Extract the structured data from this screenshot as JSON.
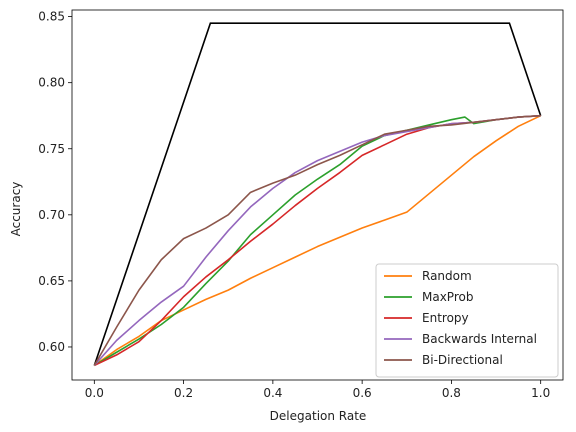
{
  "chart_data": {
    "type": "line",
    "title": "",
    "xlabel": "Delegation Rate",
    "ylabel": "Accuracy",
    "xlim": [
      -0.05,
      1.05
    ],
    "ylim": [
      0.575,
      0.855
    ],
    "xticks": [
      "0.0",
      "0.2",
      "0.4",
      "0.6",
      "0.8",
      "1.0"
    ],
    "xtick_values": [
      0.0,
      0.2,
      0.4,
      0.6,
      0.8,
      1.0
    ],
    "yticks": [
      "0.60",
      "0.65",
      "0.70",
      "0.75",
      "0.80",
      "0.85"
    ],
    "ytick_values": [
      0.6,
      0.65,
      0.7,
      0.75,
      0.8,
      0.85
    ],
    "grid": false,
    "legend_position": "lower-right",
    "oracle": {
      "color": "#000000",
      "x": [
        0.0,
        0.26,
        0.93,
        1.0
      ],
      "y": [
        0.586,
        0.845,
        0.845,
        0.775
      ]
    },
    "series": [
      {
        "name": "Random",
        "color": "#ff7f0e",
        "x": [
          0.0,
          0.05,
          0.1,
          0.15,
          0.2,
          0.25,
          0.3,
          0.35,
          0.4,
          0.45,
          0.5,
          0.55,
          0.6,
          0.65,
          0.7,
          0.75,
          0.8,
          0.85,
          0.9,
          0.95,
          1.0
        ],
        "y": [
          0.586,
          0.598,
          0.608,
          0.62,
          0.628,
          0.636,
          0.643,
          0.652,
          0.66,
          0.668,
          0.676,
          0.683,
          0.69,
          0.696,
          0.702,
          0.716,
          0.73,
          0.744,
          0.756,
          0.767,
          0.775
        ]
      },
      {
        "name": "MaxProb",
        "color": "#2ca02c",
        "x": [
          0.0,
          0.05,
          0.1,
          0.15,
          0.2,
          0.25,
          0.3,
          0.35,
          0.4,
          0.45,
          0.5,
          0.55,
          0.6,
          0.65,
          0.7,
          0.75,
          0.8,
          0.83,
          0.85,
          0.9,
          0.95,
          1.0
        ],
        "y": [
          0.586,
          0.596,
          0.606,
          0.617,
          0.63,
          0.648,
          0.665,
          0.685,
          0.7,
          0.715,
          0.727,
          0.738,
          0.752,
          0.76,
          0.764,
          0.768,
          0.772,
          0.774,
          0.769,
          0.772,
          0.774,
          0.775
        ]
      },
      {
        "name": "Entropy",
        "color": "#d62728",
        "x": [
          0.0,
          0.05,
          0.1,
          0.15,
          0.2,
          0.25,
          0.3,
          0.35,
          0.4,
          0.45,
          0.5,
          0.55,
          0.6,
          0.65,
          0.7,
          0.75,
          0.8,
          0.85,
          0.9,
          0.95,
          1.0
        ],
        "y": [
          0.586,
          0.594,
          0.604,
          0.62,
          0.638,
          0.653,
          0.666,
          0.68,
          0.693,
          0.707,
          0.72,
          0.732,
          0.745,
          0.753,
          0.761,
          0.766,
          0.769,
          0.77,
          0.772,
          0.774,
          0.775
        ]
      },
      {
        "name": "Backwards Internal",
        "color": "#9467bd",
        "x": [
          0.0,
          0.05,
          0.1,
          0.15,
          0.2,
          0.25,
          0.3,
          0.35,
          0.4,
          0.45,
          0.5,
          0.55,
          0.6,
          0.65,
          0.7,
          0.75,
          0.8,
          0.85,
          0.9,
          0.95,
          1.0
        ],
        "y": [
          0.586,
          0.605,
          0.62,
          0.634,
          0.646,
          0.668,
          0.688,
          0.706,
          0.72,
          0.732,
          0.741,
          0.748,
          0.755,
          0.76,
          0.763,
          0.766,
          0.769,
          0.77,
          0.772,
          0.774,
          0.775
        ]
      },
      {
        "name": "Bi-Directional",
        "color": "#8c564b",
        "x": [
          0.0,
          0.05,
          0.1,
          0.15,
          0.2,
          0.25,
          0.3,
          0.35,
          0.4,
          0.45,
          0.5,
          0.55,
          0.6,
          0.65,
          0.7,
          0.75,
          0.8,
          0.85,
          0.9,
          0.95,
          1.0
        ],
        "y": [
          0.586,
          0.615,
          0.643,
          0.666,
          0.682,
          0.69,
          0.7,
          0.717,
          0.724,
          0.73,
          0.738,
          0.745,
          0.753,
          0.761,
          0.764,
          0.767,
          0.768,
          0.77,
          0.772,
          0.774,
          0.775
        ]
      }
    ]
  }
}
